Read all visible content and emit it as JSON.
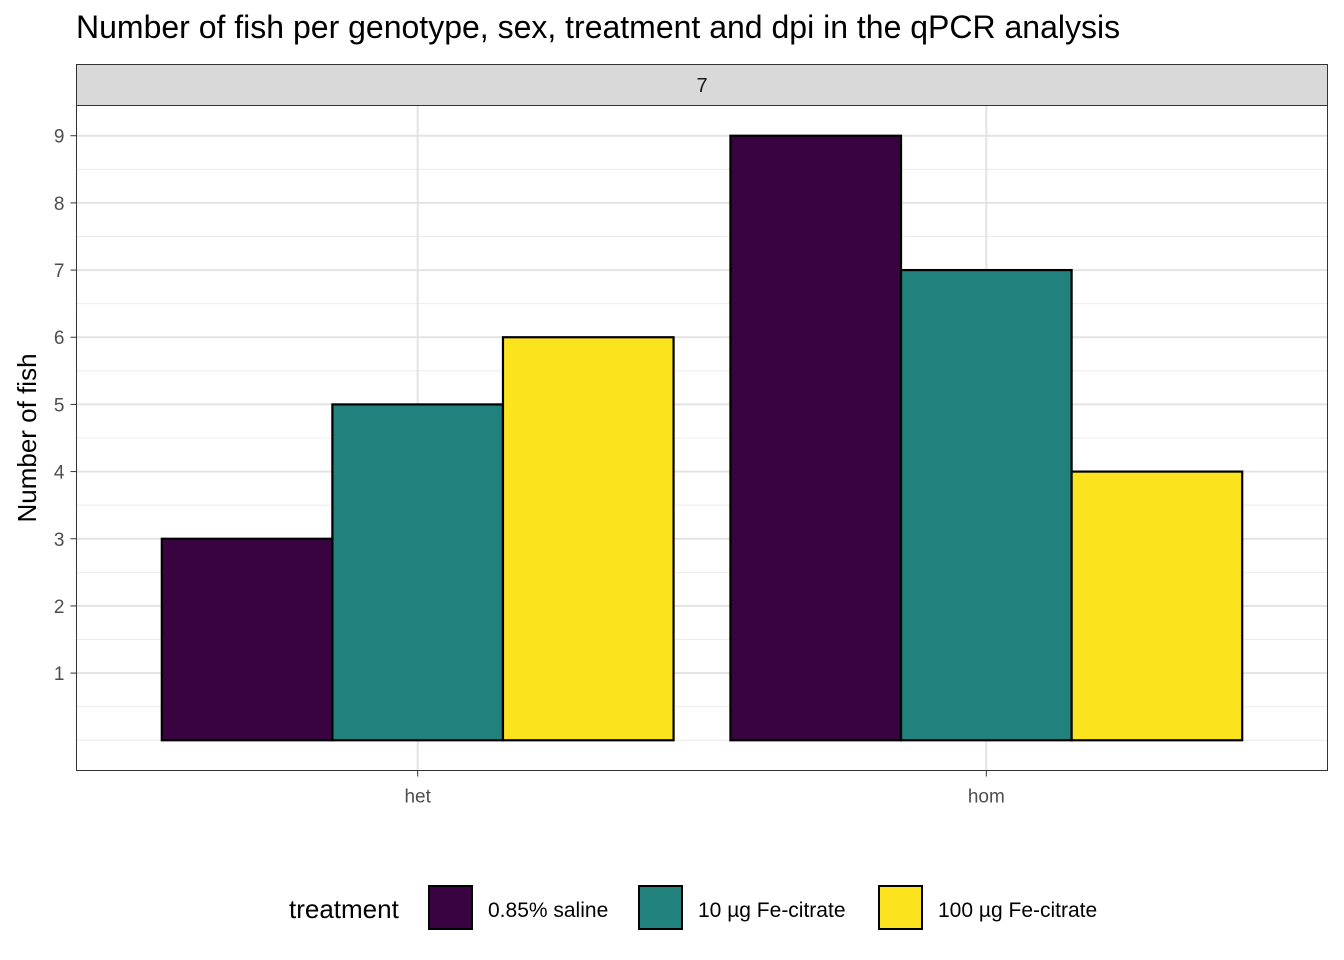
{
  "chart_data": {
    "type": "bar",
    "title": "Number of fish per genotype, sex, treatment and dpi in the qPCR analysis",
    "facet_label": "7",
    "xlabel": "",
    "ylabel": "Number of fish",
    "categories": [
      "het",
      "hom"
    ],
    "series": [
      {
        "name": "0.85% saline",
        "values": [
          3,
          9
        ]
      },
      {
        "name": "10 µg Fe-citrate",
        "values": [
          5,
          7
        ]
      },
      {
        "name": "100 µg Fe-citrate",
        "values": [
          6,
          4
        ]
      }
    ],
    "colors": [
      "#380340",
      "#21817C",
      "#FBE41E"
    ],
    "yticks": [
      1,
      2,
      3,
      4,
      5,
      6,
      7,
      8,
      9
    ],
    "ylim": [
      -0.45,
      9.45
    ],
    "grid": true,
    "legend": {
      "title": "treatment",
      "position": "bottom"
    }
  }
}
